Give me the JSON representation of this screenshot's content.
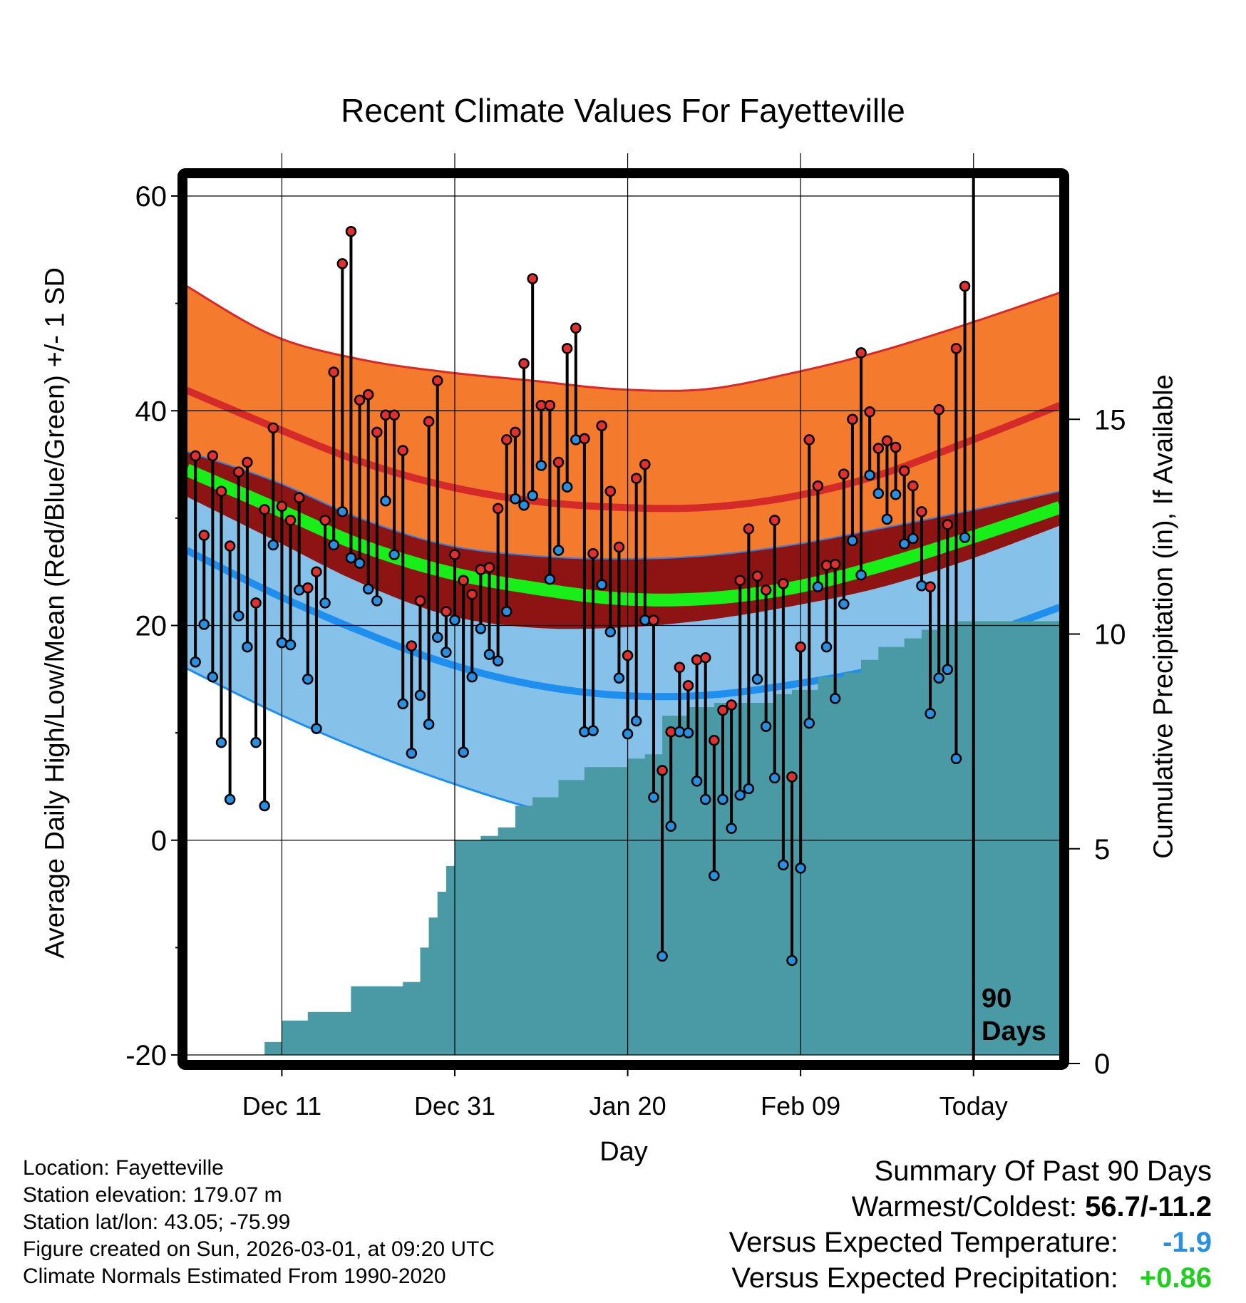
{
  "chart_data": {
    "type": "line",
    "title": "Recent Climate Values For Fayetteville",
    "xlabel": "Day",
    "ylabel_left": "Average Daily High/Low/Mean (Red/Blue/Green) +/- 1 SD",
    "ylabel_right": "Cumulative Precipitation (in), If Available",
    "x_ticks": [
      {
        "label": "Dec 11",
        "day": 11
      },
      {
        "label": "Dec 31",
        "day": 31
      },
      {
        "label": "Jan 20",
        "day": 51
      },
      {
        "label": "Feb 09",
        "day": 71
      },
      {
        "label": "Today",
        "day": 91
      }
    ],
    "ylim_left": [
      -20,
      60
    ],
    "y_ticks_left": [
      "-20",
      "0",
      "20",
      "40",
      "60"
    ],
    "ylim_right": [
      0,
      20
    ],
    "y_ticks_right": [
      "0",
      "5",
      "10",
      "15"
    ],
    "today_marker": {
      "day": 91,
      "label_line1": "90",
      "label_line2": "Days"
    },
    "normals": {
      "days": [
        0,
        10,
        20,
        30,
        40,
        50,
        60,
        70,
        80,
        90,
        101
      ],
      "high_mean": [
        41.9,
        38.5,
        35.3,
        33.0,
        31.6,
        31.0,
        31.0,
        32.0,
        34.0,
        37.0,
        40.5
      ],
      "high_upper": [
        51.6,
        47.0,
        44.8,
        43.6,
        42.8,
        42.0,
        42.0,
        43.5,
        45.5,
        48.0,
        51.0
      ],
      "low_mean": [
        27.0,
        23.0,
        19.5,
        16.5,
        14.5,
        13.5,
        13.5,
        14.5,
        16.0,
        18.5,
        21.7
      ],
      "low_lower": [
        16.0,
        12.0,
        8.5,
        5.5,
        3.0,
        1.5,
        2.0,
        3.5,
        5.0,
        7.0,
        10.5
      ],
      "mean": [
        34.5,
        31.0,
        27.5,
        25.0,
        23.5,
        22.5,
        22.5,
        23.5,
        25.5,
        28.0,
        31.0
      ],
      "mean_upper": [
        36.2,
        33.5,
        30.0,
        27.5,
        26.5,
        26.2,
        26.5,
        27.5,
        29.0,
        30.6,
        32.5
      ],
      "mean_lower": [
        32.0,
        28.0,
        24.0,
        21.0,
        19.8,
        19.8,
        20.5,
        21.8,
        23.5,
        26.0,
        29.3
      ]
    },
    "series": [
      {
        "name": "Daily High",
        "color": "#e03030",
        "values": [
          35.8,
          28.4,
          35.8,
          32.5,
          27.4,
          34.3,
          35.2,
          22.1,
          30.8,
          38.4,
          31.1,
          29.8,
          31.9,
          23.5,
          25.0,
          29.8,
          43.6,
          53.7,
          56.7,
          41.0,
          41.5,
          38.0,
          39.6,
          39.6,
          36.3,
          18.1,
          22.3,
          39.0,
          42.8,
          21.3,
          26.6,
          24.2,
          22.9,
          25.2,
          25.4,
          30.9,
          37.3,
          38.0,
          44.4,
          52.3,
          40.5,
          40.5,
          35.2,
          45.8,
          47.7,
          37.4,
          26.7,
          38.6,
          32.5,
          27.3,
          17.2,
          33.7,
          35.0,
          20.5,
          6.5,
          10.1,
          16.1,
          14.4,
          16.8,
          17.0,
          9.3,
          12.1,
          12.6,
          24.2,
          29.0,
          24.6,
          23.3,
          29.8,
          23.9,
          5.9,
          18.0,
          37.3,
          33.0,
          25.6,
          25.7,
          34.1,
          39.2,
          45.4,
          39.9,
          36.5,
          37.2,
          36.6,
          34.4,
          33.0,
          30.6,
          23.6,
          40.1,
          29.4,
          45.8,
          51.6
        ]
      },
      {
        "name": "Daily Low",
        "color": "#2a8fe0",
        "values": [
          16.6,
          20.1,
          15.2,
          9.1,
          3.8,
          20.9,
          18.0,
          9.1,
          3.2,
          27.5,
          18.4,
          18.2,
          23.3,
          15.0,
          10.4,
          22.1,
          27.5,
          30.6,
          26.3,
          25.8,
          23.4,
          22.3,
          31.6,
          26.6,
          12.7,
          8.1,
          13.5,
          10.8,
          18.9,
          17.5,
          20.5,
          8.2,
          15.2,
          19.7,
          17.3,
          16.7,
          21.3,
          31.8,
          31.2,
          32.1,
          34.9,
          24.3,
          27.0,
          32.9,
          37.3,
          10.1,
          10.2,
          23.8,
          19.4,
          15.1,
          9.9,
          11.1,
          20.5,
          4.0,
          -10.8,
          1.3,
          10.1,
          10.0,
          5.5,
          3.8,
          -3.3,
          3.8,
          1.1,
          4.2,
          4.8,
          15.0,
          10.6,
          5.8,
          -2.3,
          -11.2,
          -2.6,
          10.9,
          23.6,
          18.0,
          13.2,
          22.0,
          27.9,
          24.7,
          34.0,
          32.3,
          29.9,
          32.2,
          27.6,
          28.1,
          23.7,
          11.8,
          15.1,
          15.9,
          7.6,
          28.2
        ]
      }
    ],
    "precip_cumulative": {
      "days": [
        0,
        9,
        11,
        14,
        17,
        19,
        25,
        27,
        28,
        29,
        30,
        31,
        34,
        36,
        38,
        40,
        43,
        46,
        51,
        53,
        55,
        58,
        61,
        64,
        68,
        70,
        73,
        76,
        78,
        80,
        83,
        85,
        87,
        89,
        101
      ],
      "values": [
        0,
        0.3,
        0.8,
        1.0,
        1.0,
        1.6,
        1.7,
        2.5,
        3.2,
        3.8,
        4.4,
        5.0,
        5.1,
        5.3,
        5.8,
        6.0,
        6.4,
        6.7,
        6.9,
        7.0,
        7.9,
        8.1,
        8.2,
        8.2,
        8.4,
        8.5,
        8.8,
        8.9,
        9.2,
        9.5,
        9.7,
        9.9,
        10.0,
        10.1,
        10.1
      ]
    },
    "legend": "none"
  },
  "footer": {
    "location": "Location: Fayetteville",
    "elevation": "Station elevation: 179.07 m",
    "latlon": "Station lat/lon: 43.05; -75.99",
    "created": "Figure created on Sun, 2026-03-01, at 09:20 UTC",
    "normals": "Climate Normals Estimated From 1990-2020"
  },
  "summary": {
    "title": "Summary Of Past 90 Days",
    "warmest_coldest_label": "Warmest/Coldest:",
    "warmest_coldest_value": "56.7/-11.2",
    "temp_label": "Versus Expected Temperature:",
    "temp_value": "-1.9",
    "temp_color": "#2a8fe0",
    "precip_label": "Versus Expected Precipitation:",
    "precip_value": "+0.86",
    "precip_color": "#22cc22"
  },
  "colors": {
    "high_band": "#f47a2e",
    "high_line": "#d42a2a",
    "low_band": "#85c1e8",
    "low_line": "#1e8fee",
    "mean_band": "#8e1414",
    "mean_line": "#18ee18",
    "precip": "#4a9aa5"
  }
}
